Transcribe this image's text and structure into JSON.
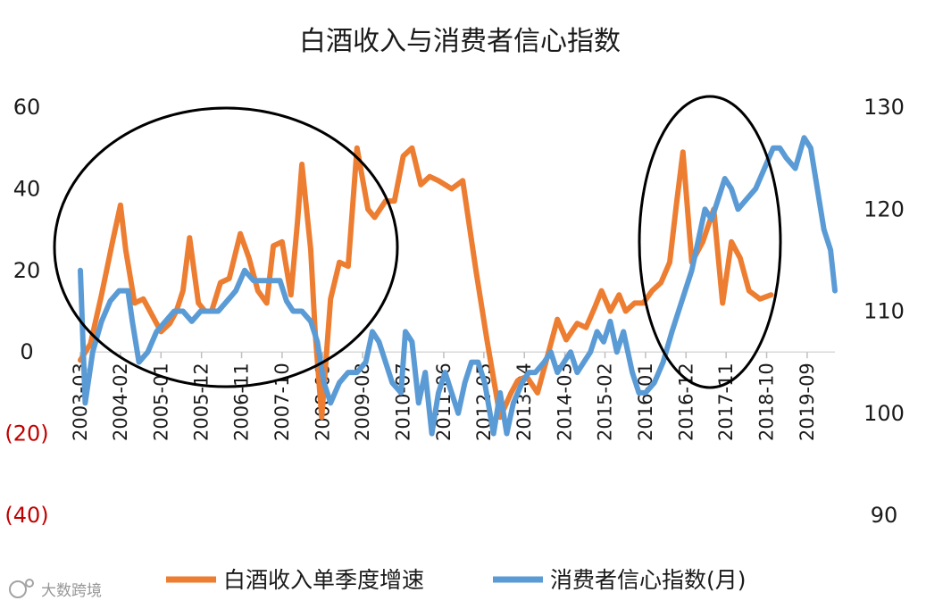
{
  "chart_data": {
    "type": "line",
    "title": "白酒收入与消费者信心指数",
    "y_left": {
      "ticks": [
        "60",
        "40",
        "20",
        "0",
        "(20)",
        "(40)"
      ],
      "values": [
        60,
        40,
        20,
        0,
        -20,
        -40
      ],
      "ylim": [
        -40,
        60
      ]
    },
    "y_right": {
      "ticks": [
        "130",
        "120",
        "110",
        "100",
        "90"
      ],
      "values": [
        130,
        120,
        110,
        100,
        90
      ],
      "ylim": [
        90,
        130
      ]
    },
    "x_range": [
      2003.17,
      2020.3
    ],
    "x_ticks": [
      {
        "label": "2003-03",
        "x": 2003.17
      },
      {
        "label": "2004-02",
        "x": 2004.08
      },
      {
        "label": "2005-01",
        "x": 2005.0
      },
      {
        "label": "2005-12",
        "x": 2005.92
      },
      {
        "label": "2006-11",
        "x": 2006.83
      },
      {
        "label": "2007-10",
        "x": 2007.75
      },
      {
        "label": "2008-09",
        "x": 2008.67
      },
      {
        "label": "2009-08",
        "x": 2009.58
      },
      {
        "label": "2010-07",
        "x": 2010.5
      },
      {
        "label": "2011-06",
        "x": 2011.42
      },
      {
        "label": "2012-05",
        "x": 2012.33
      },
      {
        "label": "2013-04",
        "x": 2013.25
      },
      {
        "label": "2014-03",
        "x": 2014.17
      },
      {
        "label": "2015-02",
        "x": 2015.08
      },
      {
        "label": "2016-01",
        "x": 2016.0
      },
      {
        "label": "2016-12",
        "x": 2016.92
      },
      {
        "label": "2017-11",
        "x": 2017.83
      },
      {
        "label": "2018-10",
        "x": 2018.75
      },
      {
        "label": "2019-09",
        "x": 2019.67
      }
    ],
    "series": [
      {
        "name": "白酒收入单季度增速",
        "axis": "left",
        "color": "#ed7d31",
        "points": [
          [
            2003.17,
            -2
          ],
          [
            2003.4,
            2
          ],
          [
            2003.65,
            14
          ],
          [
            2003.9,
            27
          ],
          [
            2004.08,
            36
          ],
          [
            2004.2,
            25
          ],
          [
            2004.4,
            12
          ],
          [
            2004.6,
            13
          ],
          [
            2004.8,
            9
          ],
          [
            2005.0,
            5
          ],
          [
            2005.2,
            7
          ],
          [
            2005.35,
            10
          ],
          [
            2005.5,
            15
          ],
          [
            2005.65,
            28
          ],
          [
            2005.85,
            12
          ],
          [
            2006.0,
            10
          ],
          [
            2006.15,
            10
          ],
          [
            2006.35,
            17
          ],
          [
            2006.55,
            18
          ],
          [
            2006.8,
            29
          ],
          [
            2007.0,
            23
          ],
          [
            2007.2,
            15
          ],
          [
            2007.4,
            12
          ],
          [
            2007.55,
            26
          ],
          [
            2007.75,
            27
          ],
          [
            2007.95,
            14
          ],
          [
            2008.1,
            32
          ],
          [
            2008.2,
            46
          ],
          [
            2008.4,
            25
          ],
          [
            2008.5,
            5
          ],
          [
            2008.65,
            -16
          ],
          [
            2008.85,
            13
          ],
          [
            2009.05,
            22
          ],
          [
            2009.25,
            21
          ],
          [
            2009.45,
            50
          ],
          [
            2009.7,
            35
          ],
          [
            2009.85,
            33
          ],
          [
            2010.1,
            37
          ],
          [
            2010.3,
            37
          ],
          [
            2010.5,
            48
          ],
          [
            2010.7,
            50
          ],
          [
            2010.9,
            41
          ],
          [
            2011.1,
            43
          ],
          [
            2011.3,
            42
          ],
          [
            2011.6,
            40
          ],
          [
            2011.85,
            42
          ],
          [
            2012.15,
            20
          ],
          [
            2012.4,
            3
          ],
          [
            2012.7,
            -16
          ],
          [
            2012.95,
            -10
          ],
          [
            2013.1,
            -7
          ],
          [
            2013.3,
            -6
          ],
          [
            2013.55,
            -10
          ],
          [
            2013.75,
            -2
          ],
          [
            2014.0,
            8
          ],
          [
            2014.2,
            3
          ],
          [
            2014.45,
            7
          ],
          [
            2014.65,
            6
          ],
          [
            2014.85,
            11
          ],
          [
            2015.0,
            15
          ],
          [
            2015.2,
            10
          ],
          [
            2015.4,
            14
          ],
          [
            2015.55,
            10
          ],
          [
            2015.75,
            12
          ],
          [
            2015.95,
            12
          ],
          [
            2016.15,
            15
          ],
          [
            2016.35,
            17
          ],
          [
            2016.55,
            22
          ],
          [
            2016.7,
            36
          ],
          [
            2016.85,
            49
          ],
          [
            2017.05,
            22
          ],
          [
            2017.3,
            27
          ],
          [
            2017.55,
            35
          ],
          [
            2017.75,
            12
          ],
          [
            2017.95,
            27
          ],
          [
            2018.15,
            23
          ],
          [
            2018.35,
            15
          ],
          [
            2018.6,
            13
          ],
          [
            2018.85,
            14
          ]
        ]
      },
      {
        "name": "消费者信心指数(月)",
        "axis": "right",
        "color": "#5b9bd5",
        "points": [
          [
            2003.17,
            114
          ],
          [
            2003.28,
            101
          ],
          [
            2003.45,
            106
          ],
          [
            2003.65,
            109
          ],
          [
            2003.85,
            111
          ],
          [
            2004.05,
            112
          ],
          [
            2004.25,
            112
          ],
          [
            2004.35,
            109
          ],
          [
            2004.5,
            105
          ],
          [
            2004.7,
            106
          ],
          [
            2004.9,
            108
          ],
          [
            2005.1,
            109
          ],
          [
            2005.3,
            110
          ],
          [
            2005.5,
            110
          ],
          [
            2005.7,
            109
          ],
          [
            2005.9,
            110
          ],
          [
            2006.1,
            110
          ],
          [
            2006.3,
            110
          ],
          [
            2006.5,
            111
          ],
          [
            2006.7,
            112
          ],
          [
            2006.9,
            114
          ],
          [
            2007.1,
            113
          ],
          [
            2007.3,
            113
          ],
          [
            2007.5,
            113
          ],
          [
            2007.7,
            113
          ],
          [
            2007.85,
            111
          ],
          [
            2008.0,
            110
          ],
          [
            2008.2,
            110
          ],
          [
            2008.4,
            109
          ],
          [
            2008.55,
            107
          ],
          [
            2008.7,
            103
          ],
          [
            2008.85,
            101
          ],
          [
            2009.05,
            103
          ],
          [
            2009.25,
            104
          ],
          [
            2009.45,
            104
          ],
          [
            2009.65,
            105
          ],
          [
            2009.8,
            108
          ],
          [
            2009.95,
            107
          ],
          [
            2010.1,
            105
          ],
          [
            2010.25,
            103
          ],
          [
            2010.45,
            102
          ],
          [
            2010.55,
            108
          ],
          [
            2010.7,
            107
          ],
          [
            2010.85,
            101
          ],
          [
            2011.0,
            104
          ],
          [
            2011.15,
            98
          ],
          [
            2011.3,
            102
          ],
          [
            2011.45,
            104
          ],
          [
            2011.6,
            102
          ],
          [
            2011.75,
            100
          ],
          [
            2011.9,
            103
          ],
          [
            2012.05,
            105
          ],
          [
            2012.2,
            105
          ],
          [
            2012.35,
            103
          ],
          [
            2012.55,
            98
          ],
          [
            2012.7,
            102
          ],
          [
            2012.85,
            98
          ],
          [
            2013.0,
            101
          ],
          [
            2013.2,
            103
          ],
          [
            2013.35,
            104
          ],
          [
            2013.5,
            104
          ],
          [
            2013.7,
            105
          ],
          [
            2013.85,
            106
          ],
          [
            2014.0,
            104
          ],
          [
            2014.15,
            105
          ],
          [
            2014.3,
            106
          ],
          [
            2014.45,
            104
          ],
          [
            2014.6,
            105
          ],
          [
            2014.75,
            106
          ],
          [
            2014.9,
            108
          ],
          [
            2015.05,
            107
          ],
          [
            2015.2,
            109
          ],
          [
            2015.35,
            106
          ],
          [
            2015.5,
            108
          ],
          [
            2015.7,
            104
          ],
          [
            2015.85,
            102
          ],
          [
            2016.0,
            102
          ],
          [
            2016.2,
            103
          ],
          [
            2016.4,
            105
          ],
          [
            2016.6,
            108
          ],
          [
            2016.75,
            110
          ],
          [
            2016.9,
            112
          ],
          [
            2017.05,
            114
          ],
          [
            2017.2,
            117
          ],
          [
            2017.35,
            120
          ],
          [
            2017.5,
            119
          ],
          [
            2017.65,
            121
          ],
          [
            2017.8,
            123
          ],
          [
            2017.95,
            122
          ],
          [
            2018.1,
            120
          ],
          [
            2018.3,
            121
          ],
          [
            2018.5,
            122
          ],
          [
            2018.7,
            124
          ],
          [
            2018.9,
            126
          ],
          [
            2019.05,
            126
          ],
          [
            2019.2,
            125
          ],
          [
            2019.4,
            124
          ],
          [
            2019.6,
            127
          ],
          [
            2019.75,
            126
          ],
          [
            2019.9,
            122
          ],
          [
            2020.05,
            118
          ],
          [
            2020.2,
            116
          ],
          [
            2020.3,
            112
          ]
        ]
      }
    ],
    "annotations": [
      {
        "type": "ellipse",
        "description": "highlight 2003–2008 period"
      },
      {
        "type": "ellipse",
        "description": "highlight 2016–2018 period"
      }
    ]
  },
  "watermark": "大数跨境"
}
